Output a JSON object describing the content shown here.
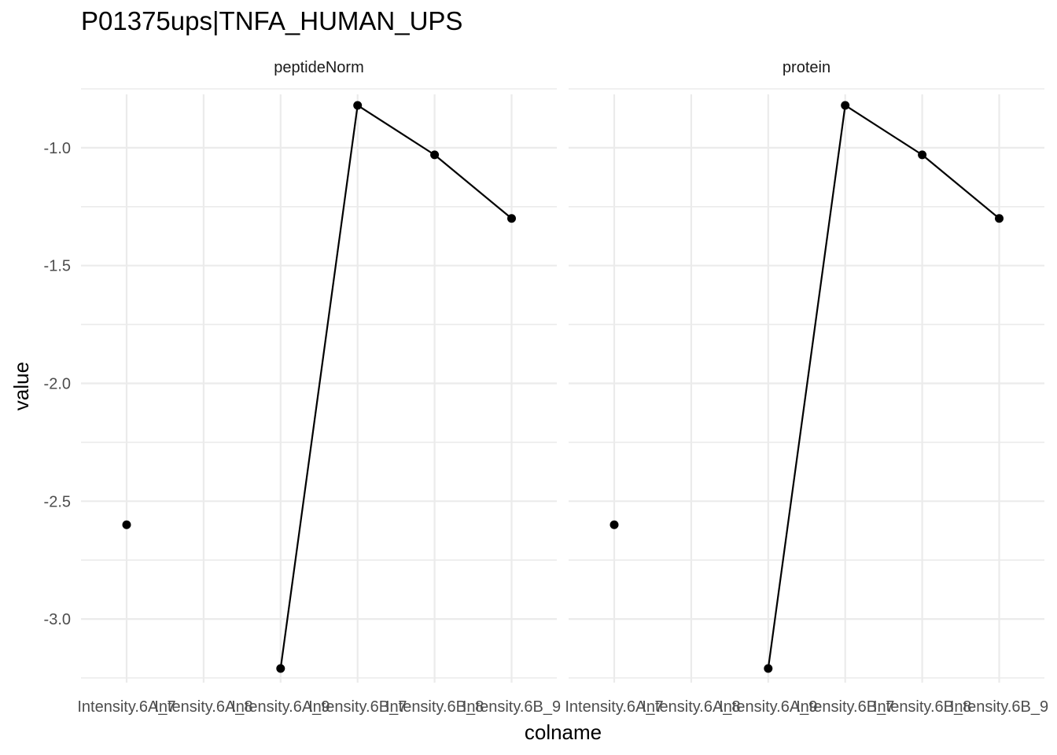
{
  "title": "P01375ups|TNFA_HUMAN_UPS",
  "chart_data": {
    "type": "line",
    "title": "P01375ups|TNFA_HUMAN_UPS",
    "xlabel": "colname",
    "ylabel": "value",
    "categories": [
      "Intensity.6A_7",
      "Intensity.6A_8",
      "Intensity.6A_9",
      "Intensity.6B_7",
      "Intensity.6B_8",
      "Intensity.6B_9"
    ],
    "ylim": [
      -3.27,
      -0.72
    ],
    "yticks": [
      -3.0,
      -2.5,
      -2.0,
      -1.5,
      -1.0
    ],
    "ytick_labels": [
      "-3.0",
      "-2.5",
      "-2.0",
      "-1.5",
      "-1.0"
    ],
    "grid": true,
    "facets": [
      {
        "label": "peptideNorm",
        "values": [
          -2.6,
          null,
          -3.21,
          -0.82,
          -1.03,
          -1.3
        ]
      },
      {
        "label": "protein",
        "values": [
          -2.6,
          null,
          -3.21,
          -0.82,
          -1.03,
          -1.3
        ]
      }
    ]
  }
}
